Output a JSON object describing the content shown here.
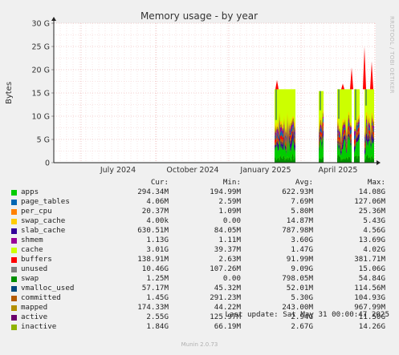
{
  "chart_data": {
    "type": "area",
    "title": "Memory usage - by year",
    "ylabel": "Bytes",
    "ylim": [
      0,
      30
    ],
    "yunit": "G",
    "yticks": [
      "0",
      "5 G",
      "10 G",
      "15 G",
      "20 G",
      "25 G",
      "30 G"
    ],
    "xticks": [
      "July 2024",
      "October 2024",
      "January 2025",
      "April 2025"
    ],
    "grid": true,
    "legend_columns": [
      "Cur:",
      "Min:",
      "Avg:",
      "Max:"
    ],
    "series": [
      {
        "name": "apps",
        "color": "#00cc00",
        "cur": "294.34M",
        "min": "194.99M",
        "avg": "622.93M",
        "max": "14.08G"
      },
      {
        "name": "page_tables",
        "color": "#0066b3",
        "cur": "4.06M",
        "min": "2.59M",
        "avg": "7.69M",
        "max": "127.06M"
      },
      {
        "name": "per_cpu",
        "color": "#ff8000",
        "cur": "20.37M",
        "min": "1.09M",
        "avg": "5.80M",
        "max": "25.36M"
      },
      {
        "name": "swap_cache",
        "color": "#ffcc00",
        "cur": "4.00k",
        "min": "0.00",
        "avg": "14.87M",
        "max": "5.43G"
      },
      {
        "name": "slab_cache",
        "color": "#330099",
        "cur": "630.51M",
        "min": "84.05M",
        "avg": "787.98M",
        "max": "4.56G"
      },
      {
        "name": "shmem",
        "color": "#990099",
        "cur": "1.13G",
        "min": "1.11M",
        "avg": "3.60G",
        "max": "13.69G"
      },
      {
        "name": "cache",
        "color": "#ccff00",
        "cur": "3.01G",
        "min": "39.37M",
        "avg": "1.47G",
        "max": "4.02G"
      },
      {
        "name": "buffers",
        "color": "#ff0000",
        "cur": "138.91M",
        "min": "2.63M",
        "avg": "91.99M",
        "max": "381.71M"
      },
      {
        "name": "unused",
        "color": "#808080",
        "cur": "10.46G",
        "min": "107.26M",
        "avg": "9.09G",
        "max": "15.06G"
      },
      {
        "name": "swap",
        "color": "#008f00",
        "cur": "1.25M",
        "min": "0.00",
        "avg": "798.05M",
        "max": "54.84G"
      },
      {
        "name": "vmalloc_used",
        "color": "#00487d",
        "cur": "57.17M",
        "min": "45.32M",
        "avg": "52.01M",
        "max": "114.56M"
      },
      {
        "name": "committed",
        "color": "#b35a00",
        "cur": "1.45G",
        "min": "291.23M",
        "avg": "5.30G",
        "max": "104.93G"
      },
      {
        "name": "mapped",
        "color": "#b38f00",
        "cur": "174.33M",
        "min": "44.22M",
        "avg": "243.00M",
        "max": "967.99M"
      },
      {
        "name": "active",
        "color": "#6b006b",
        "cur": "2.55G",
        "min": "125.97M",
        "avg": "2.94G",
        "max": "11.50G"
      },
      {
        "name": "inactive",
        "color": "#8fb300",
        "cur": "1.84G",
        "min": "66.19M",
        "avg": "2.67G",
        "max": "14.26G"
      }
    ]
  },
  "footer": {
    "last_update": "Last update:  Sat May 31 00:00:47 2025",
    "generator": "Munin 2.0.73",
    "side_label": "RRDTOOL / TOBI OETIKER"
  }
}
